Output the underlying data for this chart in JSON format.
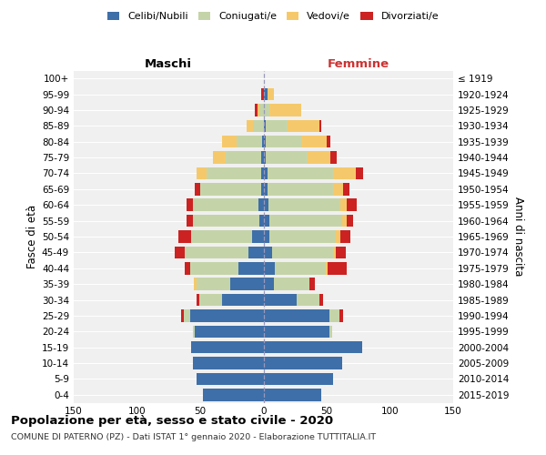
{
  "age_groups": [
    "0-4",
    "5-9",
    "10-14",
    "15-19",
    "20-24",
    "25-29",
    "30-34",
    "35-39",
    "40-44",
    "45-49",
    "50-54",
    "55-59",
    "60-64",
    "65-69",
    "70-74",
    "75-79",
    "80-84",
    "85-89",
    "90-94",
    "95-99",
    "100+"
  ],
  "birth_years": [
    "2015-2019",
    "2010-2014",
    "2005-2009",
    "2000-2004",
    "1995-1999",
    "1990-1994",
    "1985-1989",
    "1980-1984",
    "1975-1979",
    "1970-1974",
    "1965-1969",
    "1960-1964",
    "1955-1959",
    "1950-1954",
    "1945-1949",
    "1940-1944",
    "1935-1939",
    "1930-1934",
    "1925-1929",
    "1920-1924",
    "≤ 1919"
  ],
  "male": {
    "celibe": [
      48,
      53,
      56,
      57,
      54,
      58,
      33,
      26,
      20,
      12,
      9,
      3,
      4,
      2,
      2,
      2,
      1,
      0,
      0,
      0,
      0
    ],
    "coniugato": [
      0,
      0,
      0,
      0,
      2,
      5,
      18,
      27,
      38,
      50,
      48,
      53,
      52,
      48,
      43,
      28,
      20,
      8,
      3,
      0,
      0
    ],
    "vedovo": [
      0,
      0,
      0,
      0,
      0,
      0,
      0,
      2,
      0,
      0,
      0,
      0,
      0,
      0,
      8,
      10,
      12,
      5,
      2,
      0,
      0
    ],
    "divorziato": [
      0,
      0,
      0,
      0,
      0,
      2,
      2,
      0,
      4,
      8,
      10,
      5,
      5,
      4,
      0,
      0,
      0,
      0,
      2,
      2,
      0
    ]
  },
  "female": {
    "nubile": [
      46,
      55,
      62,
      78,
      52,
      52,
      26,
      8,
      9,
      7,
      5,
      5,
      4,
      3,
      3,
      2,
      2,
      2,
      0,
      3,
      0
    ],
    "coniugata": [
      0,
      0,
      0,
      0,
      2,
      8,
      18,
      28,
      40,
      48,
      52,
      57,
      57,
      52,
      52,
      33,
      28,
      17,
      5,
      0,
      0
    ],
    "vedova": [
      0,
      0,
      0,
      0,
      0,
      0,
      0,
      0,
      2,
      2,
      4,
      4,
      5,
      8,
      18,
      18,
      20,
      25,
      25,
      5,
      0
    ],
    "divorziata": [
      0,
      0,
      0,
      0,
      0,
      3,
      3,
      5,
      15,
      8,
      8,
      5,
      8,
      5,
      6,
      5,
      3,
      2,
      0,
      0,
      0
    ]
  },
  "colors": {
    "celibe": "#3E6FA8",
    "coniugato": "#C5D4A8",
    "vedovo": "#F5C96B",
    "divorziato": "#CC2222"
  },
  "legend_labels": [
    "Celibi/Nubili",
    "Coniugati/e",
    "Vedovi/e",
    "Divorziati/e"
  ],
  "xlim": 150,
  "title": "Popolazione per età, sesso e stato civile - 2020",
  "subtitle": "COMUNE DI PATERNO (PZ) - Dati ISTAT 1° gennaio 2020 - Elaborazione TUTTITALIA.IT",
  "ylabel_left": "Fasce di età",
  "ylabel_right": "Anni di nascita",
  "xlabel_male": "Maschi",
  "xlabel_female": "Femmine",
  "bg_color": "#f0f0f0"
}
